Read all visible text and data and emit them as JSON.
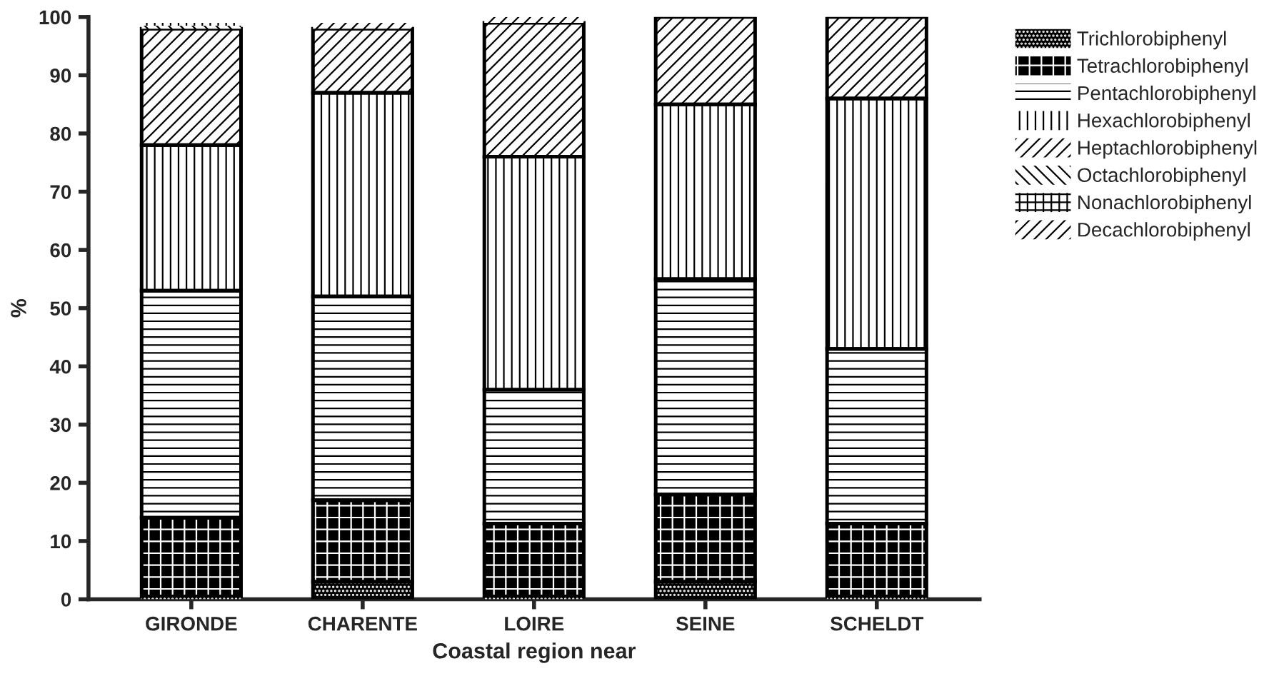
{
  "chart_data": {
    "type": "bar",
    "stacked": true,
    "xlabel": "Coastal region near",
    "ylabel": "%",
    "categories": [
      "GIRONDE",
      "CHARENTE",
      "LOIRE",
      "SEINE",
      "SCHELDT"
    ],
    "series": [
      {
        "name": "Trichlorobiphenyl",
        "color": "#000000",
        "values": [
          0.5,
          3,
          0.5,
          3,
          0.5
        ]
      },
      {
        "name": "Tetrachlorobiphenyl",
        "color": "#000000",
        "values": [
          13.5,
          14,
          12.5,
          15,
          12.5
        ]
      },
      {
        "name": "Pentachlorobiphenyl",
        "color": "#ffffff",
        "values": [
          39,
          35,
          23,
          37,
          30
        ]
      },
      {
        "name": "Hexachlorobiphenyl",
        "color": "#ffffff",
        "values": [
          25,
          35,
          40,
          30,
          43
        ]
      },
      {
        "name": "Heptachlorobiphenyl",
        "color": "#ffffff",
        "values": [
          20,
          11,
          23,
          15,
          14
        ]
      },
      {
        "name": "Octachlorobiphenyl",
        "color": "#ffffff",
        "values": [
          0.5,
          0,
          0,
          0,
          0
        ]
      },
      {
        "name": "Nonachlorobiphenyl",
        "color": "#ffffff",
        "values": [
          0.5,
          0,
          0,
          0,
          0
        ]
      },
      {
        "name": "Decachlorobiphenyl",
        "color": "#ffffff",
        "values": [
          0,
          1,
          1,
          0,
          0
        ]
      }
    ],
    "ylim": [
      0,
      100
    ],
    "yticks": [
      0,
      10,
      20,
      30,
      40,
      50,
      60,
      70,
      80,
      90,
      100
    ],
    "grid": false,
    "legend": "top right"
  }
}
